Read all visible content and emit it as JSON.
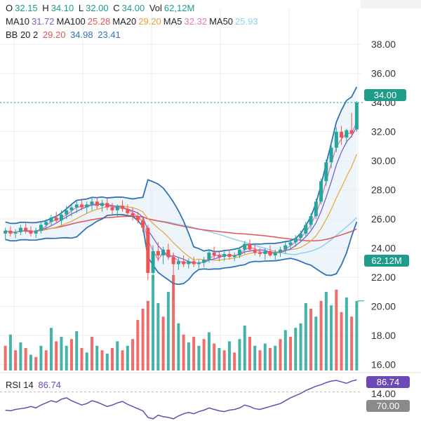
{
  "ohlc": {
    "o_label": "O",
    "o": "32.15",
    "h_label": "H",
    "h": "34.10",
    "l_label": "L",
    "l": "32.00",
    "c_label": "C",
    "c": "34.00",
    "vol_label": "Vol",
    "vol": "62,12M"
  },
  "moving_averages": [
    {
      "label": "MA10",
      "value": "31.72",
      "color": "#7b5ccf"
    },
    {
      "label": "MA100",
      "value": "25.28",
      "color": "#e4555b"
    },
    {
      "label": "MA20",
      "value": "29.20",
      "color": "#e9a23b"
    },
    {
      "label": "MA5",
      "value": "32.32",
      "color": "#e07ab8"
    },
    {
      "label": "MA50",
      "value": "25.93",
      "color": "#8fd0ef"
    }
  ],
  "bollinger": {
    "label": "BB 20 2",
    "mid": "29.20",
    "mid_color": "#e4555b",
    "upper": "34.98",
    "upper_color": "#2f74b5",
    "lower": "23.41",
    "lower_color": "#2f74b5"
  },
  "rsi": {
    "label": "RSI 14",
    "value": "86.74",
    "color": "#6c4ab6",
    "overbought": "70.00"
  },
  "badges": {
    "last_price": "34.00",
    "last_price_color": "#1f9c8a",
    "volume": "62.12M",
    "volume_color": "#1f9c8a",
    "rsi_color": "#6c4ab6",
    "rsi70_color": "#8a8a8a"
  },
  "colors": {
    "up": "#26a69a",
    "down": "#ef5350",
    "bb": "#2f74b5",
    "grid": "#eeeeee"
  },
  "chart_data": {
    "type": "candlestick",
    "price_axis": {
      "ticks": [
        "38.00",
        "36.00",
        "34.00",
        "32.00",
        "30.00",
        "28.00",
        "26.00",
        "24.00",
        "22.00",
        "20.00",
        "18.00",
        "16.00"
      ],
      "range": [
        15.5,
        39.6
      ]
    },
    "rsi_axis": {
      "ticks": [
        "14.00"
      ]
    },
    "candles": [
      [
        25.0,
        25.4,
        24.6,
        25.2
      ],
      [
        25.2,
        25.5,
        24.8,
        25.0
      ],
      [
        25.0,
        25.3,
        24.7,
        25.1
      ],
      [
        25.1,
        25.6,
        24.9,
        25.4
      ],
      [
        25.4,
        25.7,
        25.0,
        25.2
      ],
      [
        25.2,
        25.5,
        24.8,
        25.0
      ],
      [
        25.0,
        25.4,
        24.7,
        25.2
      ],
      [
        25.2,
        25.8,
        25.0,
        25.6
      ],
      [
        25.6,
        26.0,
        25.3,
        25.8
      ],
      [
        25.8,
        26.3,
        25.5,
        26.1
      ],
      [
        26.1,
        26.5,
        25.7,
        25.9
      ],
      [
        25.9,
        26.6,
        25.6,
        26.3
      ],
      [
        26.3,
        26.9,
        26.0,
        26.6
      ],
      [
        26.6,
        27.0,
        26.2,
        26.8
      ],
      [
        26.8,
        27.3,
        26.4,
        27.0
      ],
      [
        27.0,
        27.4,
        26.6,
        26.8
      ],
      [
        26.8,
        27.2,
        26.4,
        27.0
      ],
      [
        27.0,
        27.5,
        26.6,
        27.2
      ],
      [
        27.2,
        27.5,
        26.7,
        26.9
      ],
      [
        26.9,
        27.3,
        26.5,
        27.1
      ],
      [
        27.1,
        27.4,
        26.6,
        26.8
      ],
      [
        26.8,
        27.1,
        26.3,
        26.6
      ],
      [
        26.6,
        27.0,
        26.2,
        26.9
      ],
      [
        26.9,
        27.3,
        26.5,
        26.7
      ],
      [
        26.7,
        27.0,
        26.2,
        26.4
      ],
      [
        26.4,
        26.8,
        25.9,
        26.2
      ],
      [
        26.2,
        26.5,
        25.7,
        25.9
      ],
      [
        25.9,
        26.2,
        25.1,
        25.4
      ],
      [
        25.4,
        25.6,
        21.8,
        22.3
      ],
      [
        22.3,
        24.2,
        21.9,
        23.8
      ],
      [
        23.8,
        24.4,
        23.1,
        23.5
      ],
      [
        23.5,
        24.1,
        22.9,
        23.9
      ],
      [
        23.9,
        24.3,
        23.2,
        23.4
      ],
      [
        23.4,
        23.7,
        20.4,
        22.9
      ],
      [
        22.9,
        23.4,
        22.5,
        23.1
      ],
      [
        23.1,
        23.5,
        22.7,
        22.9
      ],
      [
        22.9,
        23.3,
        22.6,
        23.1
      ],
      [
        23.1,
        23.4,
        22.7,
        22.9
      ],
      [
        22.9,
        23.2,
        22.6,
        23.0
      ],
      [
        23.0,
        23.4,
        22.7,
        23.2
      ],
      [
        23.2,
        23.9,
        23.0,
        23.7
      ],
      [
        23.7,
        24.1,
        23.3,
        23.5
      ],
      [
        23.5,
        23.8,
        23.1,
        23.4
      ],
      [
        23.4,
        23.8,
        23.1,
        23.6
      ],
      [
        23.6,
        23.9,
        23.2,
        23.4
      ],
      [
        23.4,
        23.7,
        23.1,
        23.5
      ],
      [
        23.5,
        24.1,
        23.3,
        23.9
      ],
      [
        23.9,
        24.5,
        23.6,
        24.3
      ],
      [
        24.3,
        24.6,
        23.8,
        23.9
      ],
      [
        23.9,
        24.2,
        23.5,
        23.7
      ],
      [
        23.7,
        24.0,
        23.4,
        23.6
      ],
      [
        23.6,
        24.0,
        23.2,
        23.8
      ],
      [
        23.8,
        24.2,
        23.4,
        23.5
      ],
      [
        23.5,
        23.9,
        23.2,
        23.7
      ],
      [
        23.7,
        24.1,
        23.4,
        23.9
      ],
      [
        23.9,
        24.4,
        23.6,
        24.2
      ],
      [
        24.2,
        24.6,
        23.9,
        24.4
      ],
      [
        24.4,
        24.9,
        24.1,
        24.7
      ],
      [
        24.7,
        25.2,
        24.4,
        25.0
      ],
      [
        25.0,
        25.8,
        24.8,
        25.6
      ],
      [
        25.6,
        26.4,
        25.3,
        26.2
      ],
      [
        26.2,
        27.4,
        26.0,
        27.2
      ],
      [
        27.2,
        28.8,
        27.0,
        28.6
      ],
      [
        28.6,
        30.1,
        28.3,
        29.9
      ],
      [
        29.9,
        31.2,
        29.5,
        30.9
      ],
      [
        30.9,
        32.3,
        30.6,
        32.0
      ],
      [
        32.0,
        32.4,
        31.1,
        31.6
      ],
      [
        31.6,
        32.2,
        31.2,
        32.1
      ],
      [
        32.1,
        33.3,
        31.6,
        31.9
      ],
      [
        32.15,
        34.1,
        32.0,
        34.0
      ]
    ],
    "volume": [
      [
        22,
        0
      ],
      [
        32,
        1
      ],
      [
        18,
        0
      ],
      [
        25,
        1
      ],
      [
        20,
        0
      ],
      [
        14,
        1
      ],
      [
        12,
        0
      ],
      [
        22,
        1
      ],
      [
        18,
        0
      ],
      [
        38,
        1
      ],
      [
        26,
        0
      ],
      [
        30,
        1
      ],
      [
        22,
        1
      ],
      [
        28,
        0
      ],
      [
        35,
        1
      ],
      [
        20,
        0
      ],
      [
        16,
        1
      ],
      [
        30,
        0
      ],
      [
        22,
        1
      ],
      [
        18,
        0
      ],
      [
        15,
        1
      ],
      [
        20,
        0
      ],
      [
        26,
        1
      ],
      [
        18,
        0
      ],
      [
        22,
        1
      ],
      [
        28,
        0
      ],
      [
        45,
        0
      ],
      [
        55,
        0
      ],
      [
        62,
        0
      ],
      [
        85,
        1
      ],
      [
        60,
        1
      ],
      [
        48,
        0
      ],
      [
        70,
        1
      ],
      [
        85,
        0
      ],
      [
        42,
        1
      ],
      [
        32,
        0
      ],
      [
        25,
        1
      ],
      [
        30,
        0
      ],
      [
        22,
        1
      ],
      [
        28,
        0
      ],
      [
        34,
        1
      ],
      [
        24,
        0
      ],
      [
        20,
        1
      ],
      [
        18,
        0
      ],
      [
        26,
        1
      ],
      [
        16,
        0
      ],
      [
        28,
        1
      ],
      [
        40,
        1
      ],
      [
        30,
        0
      ],
      [
        22,
        1
      ],
      [
        18,
        0
      ],
      [
        24,
        1
      ],
      [
        20,
        0
      ],
      [
        22,
        1
      ],
      [
        28,
        0
      ],
      [
        36,
        1
      ],
      [
        30,
        0
      ],
      [
        38,
        1
      ],
      [
        42,
        1
      ],
      [
        60,
        1
      ],
      [
        55,
        0
      ],
      [
        48,
        1
      ],
      [
        62,
        0
      ],
      [
        70,
        1
      ],
      [
        58,
        1
      ],
      [
        72,
        0
      ],
      [
        52,
        0
      ],
      [
        65,
        1
      ],
      [
        48,
        0
      ],
      [
        62,
        1
      ]
    ],
    "rsi": [
      45,
      44,
      46,
      47,
      48,
      50,
      48,
      52,
      55,
      58,
      56,
      60,
      62,
      58,
      55,
      52,
      54,
      58,
      56,
      53,
      50,
      52,
      55,
      57,
      53,
      50,
      47,
      44,
      35,
      33,
      38,
      36,
      35,
      33,
      37,
      40,
      42,
      40,
      43,
      45,
      48,
      46,
      44,
      43,
      45,
      46,
      48,
      52,
      50,
      47,
      46,
      48,
      50,
      52,
      54,
      58,
      62,
      65,
      68,
      72,
      75,
      78,
      80,
      83,
      85,
      86,
      84,
      82,
      85,
      86.74
    ]
  }
}
